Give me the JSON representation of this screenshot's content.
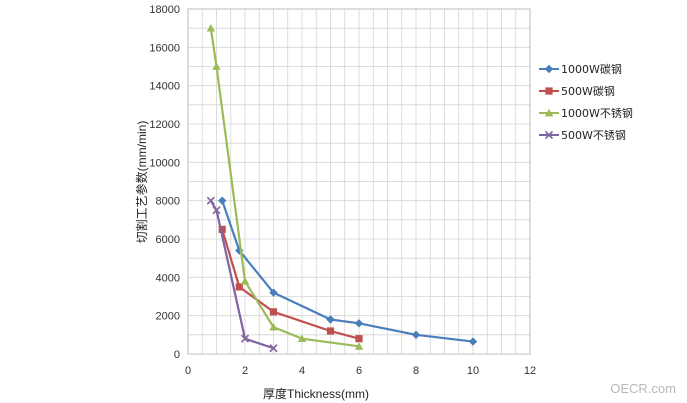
{
  "chart_data": {
    "type": "line",
    "title": "",
    "xlabel": "厚度Thickness(mm)",
    "ylabel": "切割工艺参数(mm/min)",
    "xlim": [
      0,
      12
    ],
    "ylim": [
      0,
      18000
    ],
    "xticks": [
      0,
      2,
      4,
      6,
      8,
      10,
      12
    ],
    "yticks": [
      0,
      2000,
      4000,
      6000,
      8000,
      10000,
      12000,
      14000,
      16000,
      18000
    ],
    "grid": true,
    "legend_position": "right",
    "series": [
      {
        "name": "1000W碳钢",
        "color": "#4a7ebb",
        "marker": "diamond",
        "points": [
          [
            1.2,
            8000
          ],
          [
            1.8,
            5400
          ],
          [
            3,
            3200
          ],
          [
            5,
            1800
          ],
          [
            6,
            1600
          ],
          [
            8,
            1000
          ],
          [
            10,
            650
          ]
        ]
      },
      {
        "name": "500W碳钢",
        "color": "#c0504d",
        "marker": "square",
        "points": [
          [
            1.2,
            6500
          ],
          [
            1.8,
            3500
          ],
          [
            3,
            2200
          ],
          [
            5,
            1200
          ],
          [
            6,
            800
          ]
        ]
      },
      {
        "name": "1000W不锈钢",
        "color": "#9bbb59",
        "marker": "triangle",
        "points": [
          [
            0.8,
            17000
          ],
          [
            1,
            15000
          ],
          [
            2,
            3800
          ],
          [
            3,
            1400
          ],
          [
            4,
            800
          ],
          [
            6,
            400
          ]
        ]
      },
      {
        "name": "500W不锈钢",
        "color": "#8064a2",
        "marker": "x",
        "points": [
          [
            0.8,
            8000
          ],
          [
            1,
            7500
          ],
          [
            2,
            800
          ],
          [
            3,
            300
          ]
        ]
      }
    ]
  },
  "watermark": "OECR.com"
}
